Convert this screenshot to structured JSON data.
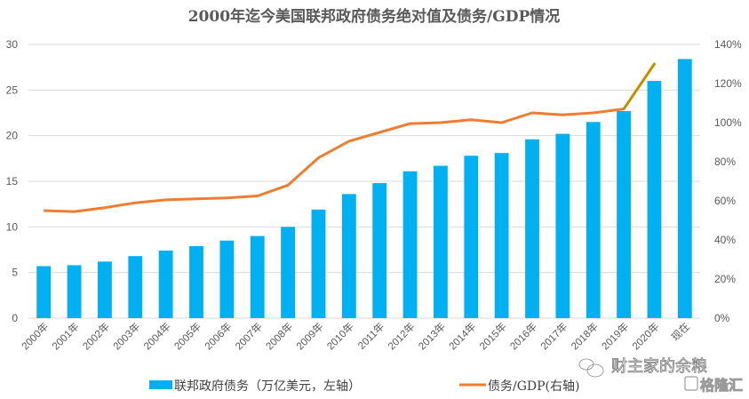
{
  "chart_data": {
    "type": "bar",
    "title": "2000年迄今美国联邦政府债务绝对值及债务/GDP情况",
    "categories": [
      "2000年",
      "2001年",
      "2002年",
      "2003年",
      "2004年",
      "2005年",
      "2006年",
      "2007年",
      "2008年",
      "2009年",
      "2010年",
      "2011年",
      "2012年",
      "2013年",
      "2014年",
      "2015年",
      "2016年",
      "2017年",
      "2018年",
      "2019年",
      "2020年",
      "现在"
    ],
    "series": [
      {
        "name": "联邦政府债务（万亿美元，左轴）",
        "type": "bar",
        "axis": "left",
        "color": "#00B0F0",
        "values": [
          5.7,
          5.8,
          6.2,
          6.8,
          7.4,
          7.9,
          8.5,
          9.0,
          10.0,
          11.9,
          13.6,
          14.8,
          16.1,
          16.7,
          17.8,
          18.1,
          19.6,
          20.2,
          21.5,
          22.7,
          26.0,
          28.4
        ]
      },
      {
        "name": "债务/GDP(右轴)",
        "type": "line",
        "axis": "right",
        "color": "#ED7D31",
        "projection_color": "#BF9000",
        "values": [
          55,
          54.5,
          56.5,
          59,
          60.5,
          61,
          61.5,
          62.5,
          68,
          82,
          90.5,
          95,
          99.5,
          100,
          101.5,
          100,
          105,
          104,
          105,
          107,
          130,
          null
        ]
      }
    ],
    "left_axis": {
      "ylim": [
        0,
        30
      ],
      "ticks": [
        "0",
        "5",
        "10",
        "15",
        "20",
        "25",
        "30"
      ]
    },
    "right_axis": {
      "ylim": [
        0,
        140
      ],
      "ticks": [
        "0%",
        "20%",
        "40%",
        "60%",
        "80%",
        "100%",
        "120%",
        "140%"
      ]
    },
    "xlabel": "",
    "ylabel": "",
    "grid": true,
    "legend_position": "bottom"
  },
  "watermark": {
    "wechat_account": "财主家的余粮",
    "site": "格隆汇"
  }
}
